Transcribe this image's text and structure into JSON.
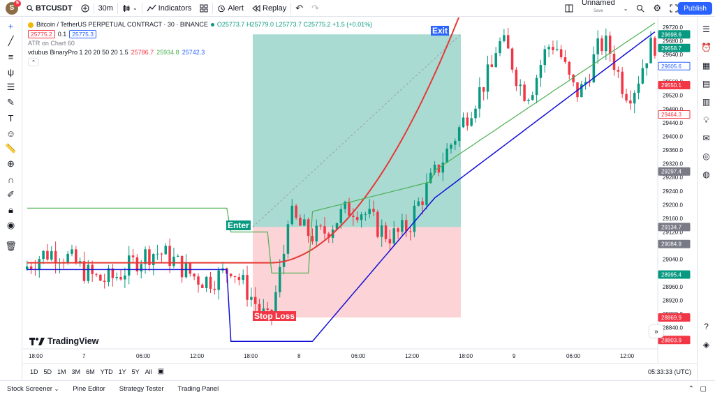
{
  "topbar": {
    "avatar_letter": "S",
    "notif_count": "5",
    "symbol": "BTCUSDT",
    "interval": "30m",
    "indicators_label": "Indicators",
    "alert_label": "Alert",
    "replay_label": "Replay",
    "layout_name": "Unnamed",
    "layout_status": "Save",
    "publish_label": "Publish"
  },
  "legend": {
    "title": "Bitcoin / TetherUS PERPETUAL CONTRACT · 30 · BINANCE",
    "ohlc": "O25773.7 H25779.0 L25773.7 C25775.2 +1.5 (+0.01%)",
    "bid": "25775.2",
    "spread": "0.1",
    "ask": "25775.3",
    "atr": "ATR on Chart 60",
    "indicator": "vdubus BinaryPro 1 20 20 50 20 1.5",
    "ind_v1": "25786.7",
    "ind_v2": "25934.8",
    "ind_v3": "25742.3"
  },
  "brand": "TradingView",
  "position_labels": {
    "enter": "Enter",
    "exit": "Exit",
    "stop": "Stop Loss"
  },
  "ranges": [
    "1D",
    "5D",
    "1M",
    "3M",
    "6M",
    "YTD",
    "1Y",
    "5Y",
    "All"
  ],
  "clock": "05:33:33 (UTC)",
  "panels": [
    "Stock Screener",
    "Pine Editor",
    "Strategy Tester",
    "Trading Panel"
  ],
  "colors": {
    "up": "#089981",
    "down": "#f23645",
    "accent": "#2962ff",
    "ma": "#e53935",
    "channel_low": "#1010d8",
    "channel_high": "#4caf50"
  },
  "chart_data": {
    "type": "candlestick",
    "y_ticks": [
      28800,
      28840,
      28880,
      28920,
      28960,
      29000,
      29040,
      29080,
      29120,
      29160,
      29200,
      29240,
      29280,
      29320,
      29360,
      29400,
      29440,
      29480,
      29520,
      29560,
      29600,
      29640,
      29680,
      29720
    ],
    "x_ticks": [
      "18:00",
      "7",
      "06:00",
      "12:00",
      "18:00",
      "8",
      "06:00",
      "12:00",
      "18:00",
      "9",
      "06:00",
      "12:00"
    ],
    "price_labels": [
      {
        "value": "29698.6",
        "color": "#089981"
      },
      {
        "value": "29658.7",
        "color": "#089981"
      },
      {
        "value": "29605.6",
        "color": "#2962ff",
        "outline": true
      },
      {
        "value": "29550.1",
        "color": "#f23645"
      },
      {
        "value": "29464.3",
        "color": "#f23645",
        "outline": true
      },
      {
        "value": "29297.4",
        "color": "#787b86"
      },
      {
        "value": "29134.7",
        "color": "#787b86"
      },
      {
        "value": "29084.9",
        "color": "#787b86"
      },
      {
        "value": "28995.4",
        "color": "#089981"
      },
      {
        "value": "28869.9",
        "color": "#f23645"
      },
      {
        "value": "28803.9",
        "color": "#f23645"
      }
    ],
    "position": {
      "entry": 29134.7,
      "target": 29698.6,
      "stop": 28869.9
    },
    "y_range": [
      28780,
      29740
    ]
  }
}
